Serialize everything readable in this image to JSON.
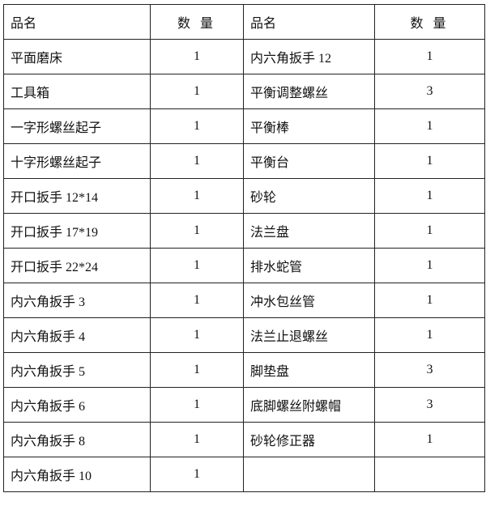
{
  "header": {
    "name": "品名",
    "qty": "数 量"
  },
  "rows": [
    {
      "n1": "平面磨床",
      "q1": "1",
      "n2": "内六角扳手 12",
      "q2": "1"
    },
    {
      "n1": "工具箱",
      "q1": "1",
      "n2": "平衡调整螺丝",
      "q2": "3"
    },
    {
      "n1": "一字形螺丝起子",
      "q1": "1",
      "n2": "平衡棒",
      "q2": "1"
    },
    {
      "n1": "十字形螺丝起子",
      "q1": "1",
      "n2": "平衡台",
      "q2": "1"
    },
    {
      "n1": "开口扳手 12*14",
      "q1": "1",
      "n2": "砂轮",
      "q2": "1"
    },
    {
      "n1": "开口扳手 17*19",
      "q1": "1",
      "n2": "法兰盘",
      "q2": "1"
    },
    {
      "n1": "开口扳手 22*24",
      "q1": "1",
      "n2": "排水蛇管",
      "q2": "1"
    },
    {
      "n1": "内六角扳手 3",
      "q1": "1",
      "n2": "冲水包丝管",
      "q2": "1"
    },
    {
      "n1": "内六角扳手 4",
      "q1": "1",
      "n2": "法兰止退螺丝",
      "q2": "1"
    },
    {
      "n1": "内六角扳手 5",
      "q1": "1",
      "n2": "脚垫盘",
      "q2": "3"
    },
    {
      "n1": "内六角扳手 6",
      "q1": "1",
      "n2": "底脚螺丝附螺帽",
      "q2": "3"
    },
    {
      "n1": "内六角扳手 8",
      "q1": "1",
      "n2": "砂轮修正器",
      "q2": "1"
    },
    {
      "n1": "内六角扳手 10",
      "q1": "1",
      "n2": "",
      "q2": ""
    }
  ]
}
